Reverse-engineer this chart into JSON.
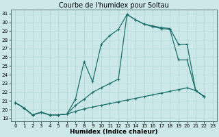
{
  "title": "Courbe de l'humidex pour Soltau",
  "xlabel": "Humidex (Indice chaleur)",
  "background_color": "#cce8e8",
  "grid_color": "#b0d8d8",
  "line_color": "#1a6e6a",
  "xlim": [
    -0.5,
    23.5
  ],
  "ylim": [
    18.7,
    31.5
  ],
  "xticks": [
    0,
    1,
    2,
    3,
    4,
    5,
    6,
    7,
    8,
    9,
    10,
    11,
    12,
    13,
    14,
    15,
    16,
    17,
    18,
    19,
    20,
    21,
    22,
    23
  ],
  "yticks": [
    19,
    20,
    21,
    22,
    23,
    24,
    25,
    26,
    27,
    28,
    29,
    30,
    31
  ],
  "s1_x": [
    0,
    1,
    2,
    3,
    4,
    5,
    6,
    7,
    8,
    9,
    10,
    11,
    12,
    13,
    14,
    15,
    16,
    17,
    18,
    19,
    20,
    21,
    22
  ],
  "s1_y": [
    20.8,
    20.2,
    19.4,
    19.7,
    19.4,
    19.4,
    19.5,
    21.2,
    25.5,
    23.2,
    27.5,
    28.5,
    29.2,
    30.9,
    30.3,
    29.8,
    29.6,
    29.4,
    29.3,
    27.5,
    27.5,
    22.2,
    21.5
  ],
  "s2_x": [
    0,
    1,
    2,
    3,
    4,
    5,
    6,
    7,
    8,
    9,
    10,
    11,
    12,
    13,
    14,
    15,
    16,
    17,
    18,
    19,
    20,
    21,
    22
  ],
  "s2_y": [
    20.8,
    20.2,
    19.4,
    19.7,
    19.4,
    19.4,
    19.5,
    20.5,
    21.2,
    22.0,
    22.5,
    23.0,
    23.5,
    30.9,
    30.3,
    29.8,
    29.5,
    29.3,
    29.2,
    25.7,
    25.7,
    22.2,
    21.5
  ],
  "s3_x": [
    0,
    1,
    2,
    3,
    4,
    5,
    6,
    7,
    8,
    9,
    10,
    11,
    12,
    13,
    14,
    15,
    16,
    17,
    18,
    19,
    20,
    21,
    22
  ],
  "s3_y": [
    20.8,
    20.2,
    19.4,
    19.7,
    19.4,
    19.4,
    19.5,
    19.8,
    20.1,
    20.3,
    20.5,
    20.7,
    20.9,
    21.1,
    21.3,
    21.5,
    21.7,
    21.9,
    22.1,
    22.3,
    22.5,
    22.2,
    21.5
  ],
  "line_width": 0.9,
  "marker": "+",
  "marker_size": 3.5,
  "marker_ew": 0.8,
  "font_size_title": 7,
  "font_size_axis": 6.5,
  "font_size_ticks": 5.2
}
